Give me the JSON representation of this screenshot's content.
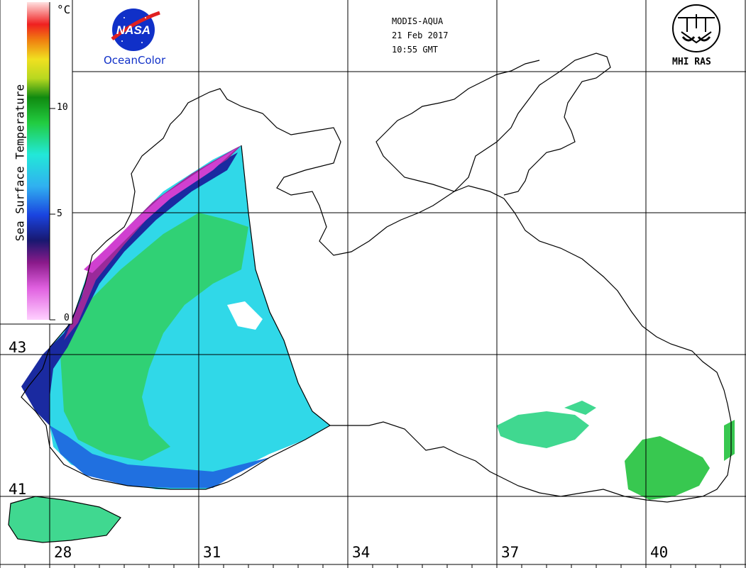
{
  "header": {
    "sensor": "MODIS-AQUA",
    "date": "21 Feb 2017",
    "time": "10:55 GMT"
  },
  "logos": {
    "nasa": "NASA",
    "oceancolor": "OceanColor",
    "mhi": "MHI RAS"
  },
  "colorbar": {
    "title": "Sea Surface Temperature",
    "unit": "°C",
    "ticks": [
      "0",
      "5",
      "10"
    ]
  },
  "grid": {
    "latitudes": [
      "43",
      "41"
    ],
    "longitudes": [
      "28",
      "31",
      "34",
      "37",
      "40"
    ]
  },
  "colors": {
    "coast": "#000000",
    "grid": "#000000",
    "warm_green": "#22cc22",
    "cyan": "#22d8e8",
    "blue": "#1a44e0",
    "navy": "#1a1a8a",
    "purple": "#8a1a8a",
    "magenta": "#d030d0",
    "pink": "#f0a0f0"
  }
}
